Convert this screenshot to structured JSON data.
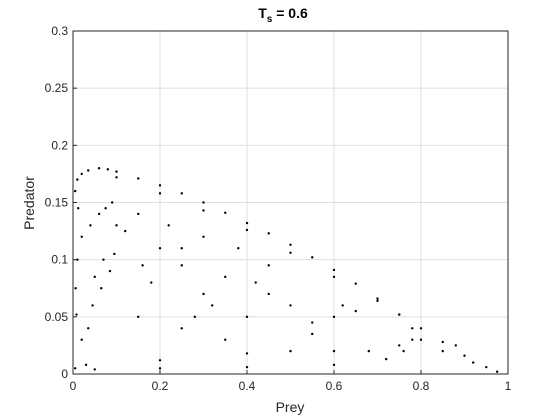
{
  "chart_data": {
    "type": "scatter",
    "title": "T",
    "title_subscript": "s",
    "title_suffix": " = 0.6",
    "xlabel": "Prey",
    "ylabel": "Predator",
    "xlim": [
      0,
      1
    ],
    "ylim": [
      0,
      0.3
    ],
    "xticks": [
      0,
      0.2,
      0.4,
      0.6,
      0.8,
      1
    ],
    "xtick_labels": [
      "0",
      "0.2",
      "0.4",
      "0.6",
      "0.8",
      "1"
    ],
    "yticks": [
      0,
      0.05,
      0.1,
      0.15,
      0.2,
      0.25,
      0.3
    ],
    "ytick_labels": [
      "0",
      "0.05",
      "0.1",
      "0.15",
      "0.2",
      "0.25",
      "0.3"
    ],
    "grid": true,
    "legend": "none",
    "marker_color": "#000000",
    "marker": "dot",
    "series": [
      {
        "points": [
          [
            0.005,
            0.005
          ],
          [
            0.02,
            0.03
          ],
          [
            0.045,
            0.06
          ],
          [
            0.065,
            0.075
          ],
          [
            0.085,
            0.09
          ],
          [
            0.095,
            0.105
          ],
          [
            0.02,
            0.12
          ],
          [
            0.04,
            0.13
          ],
          [
            0.06,
            0.14
          ],
          [
            0.075,
            0.145
          ],
          [
            0.005,
            0.16
          ],
          [
            0.01,
            0.17
          ],
          [
            0.02,
            0.175
          ],
          [
            0.035,
            0.178
          ],
          [
            0.06,
            0.18
          ],
          [
            0.08,
            0.179
          ],
          [
            0.1,
            0.177
          ],
          [
            0.15,
            0.171
          ],
          [
            0.2,
            0.165
          ],
          [
            0.25,
            0.158
          ],
          [
            0.3,
            0.15
          ],
          [
            0.35,
            0.141
          ],
          [
            0.4,
            0.132
          ],
          [
            0.45,
            0.123
          ],
          [
            0.5,
            0.113
          ],
          [
            0.55,
            0.102
          ],
          [
            0.6,
            0.091
          ],
          [
            0.65,
            0.079
          ],
          [
            0.7,
            0.066
          ],
          [
            0.75,
            0.052
          ],
          [
            0.8,
            0.04
          ],
          [
            0.85,
            0.028
          ],
          [
            0.9,
            0.016
          ],
          [
            0.95,
            0.006
          ],
          [
            0.975,
            0.002
          ],
          [
            0.1,
            0.172
          ],
          [
            0.2,
            0.158
          ],
          [
            0.3,
            0.143
          ],
          [
            0.4,
            0.126
          ],
          [
            0.5,
            0.106
          ],
          [
            0.6,
            0.085
          ],
          [
            0.7,
            0.064
          ],
          [
            0.75,
            0.052
          ],
          [
            0.78,
            0.04
          ],
          [
            0.78,
            0.03
          ],
          [
            0.76,
            0.02
          ],
          [
            0.72,
            0.013
          ],
          [
            0.6,
            0.008
          ],
          [
            0.4,
            0.006
          ],
          [
            0.2,
            0.005
          ],
          [
            0.05,
            0.004
          ],
          [
            0.4,
            0.018
          ],
          [
            0.6,
            0.02
          ],
          [
            0.75,
            0.025
          ],
          [
            0.85,
            0.02
          ],
          [
            0.92,
            0.01
          ],
          [
            0.2,
            0.012
          ],
          [
            0.55,
            0.035
          ],
          [
            0.8,
            0.03
          ],
          [
            0.88,
            0.025
          ],
          [
            0.2,
            0.11
          ],
          [
            0.25,
            0.095
          ],
          [
            0.12,
            0.125
          ],
          [
            0.18,
            0.08
          ],
          [
            0.3,
            0.07
          ],
          [
            0.35,
            0.085
          ],
          [
            0.45,
            0.095
          ],
          [
            0.15,
            0.05
          ],
          [
            0.25,
            0.04
          ],
          [
            0.28,
            0.05
          ],
          [
            0.4,
            0.05
          ],
          [
            0.45,
            0.07
          ],
          [
            0.5,
            0.06
          ],
          [
            0.55,
            0.045
          ],
          [
            0.6,
            0.05
          ],
          [
            0.65,
            0.055
          ],
          [
            0.62,
            0.06
          ],
          [
            0.68,
            0.02
          ],
          [
            0.35,
            0.03
          ],
          [
            0.5,
            0.02
          ],
          [
            0.1,
            0.13
          ],
          [
            0.15,
            0.14
          ],
          [
            0.3,
            0.12
          ],
          [
            0.05,
            0.085
          ],
          [
            0.07,
            0.1
          ],
          [
            0.035,
            0.04
          ],
          [
            0.008,
            0.052
          ],
          [
            0.01,
            0.1
          ],
          [
            0.012,
            0.145
          ],
          [
            0.006,
            0.075
          ],
          [
            0.03,
            0.008
          ],
          [
            0.09,
            0.15
          ],
          [
            0.22,
            0.13
          ],
          [
            0.38,
            0.11
          ],
          [
            0.25,
            0.11
          ],
          [
            0.42,
            0.08
          ],
          [
            0.16,
            0.095
          ],
          [
            0.32,
            0.06
          ]
        ]
      }
    ]
  }
}
